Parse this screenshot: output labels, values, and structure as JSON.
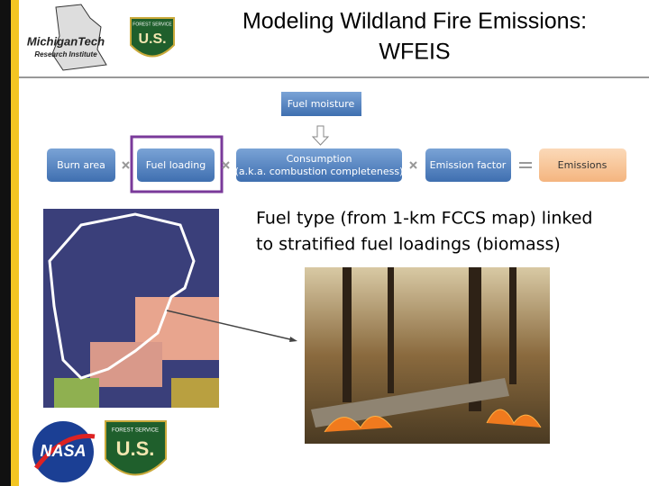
{
  "header": {
    "title_lines": [
      "Modeling Wildland Fire Emissions:",
      "WFEIS"
    ],
    "logos": {
      "mtri": [
        "MichiganTech",
        "Research Institute"
      ],
      "forest_service": [
        "FOREST SERVICE",
        "U.S."
      ]
    }
  },
  "flow": {
    "input": "Fuel moisture",
    "steps": [
      "Burn area",
      "Fuel loading",
      "Consumption",
      "(a.k.a. combustion completeness)",
      "Emission factor",
      "Emissions"
    ]
  },
  "body": {
    "text_lines": [
      "Fuel type (from 1-km FCCS map) linked",
      "to stratified fuel loadings (biomass)"
    ]
  },
  "footer": {
    "logos": {
      "nasa": "NASA",
      "forest_service": [
        "FOREST SERVICE",
        "U.S."
      ]
    }
  }
}
